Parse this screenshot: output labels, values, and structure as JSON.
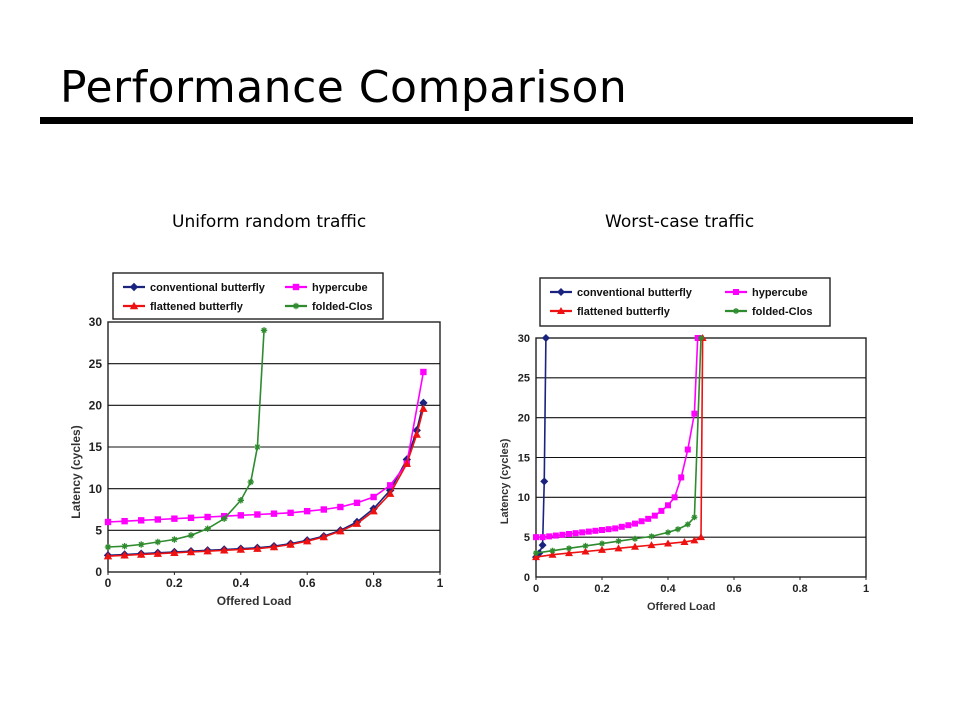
{
  "slide": {
    "title": "Performance Comparison",
    "left_caption": "Uniform random traffic",
    "right_caption": "Worst-case traffic"
  },
  "chart_data": [
    {
      "type": "line",
      "xlabel": "Offered Load",
      "ylabel": "Latency (cycles)",
      "xlim": [
        0,
        1
      ],
      "ylim": [
        0,
        30
      ],
      "xticks": [
        "0",
        "0.2",
        "0.4",
        "0.6",
        "0.8",
        "1"
      ],
      "yticks": [
        "0",
        "5",
        "10",
        "15",
        "20",
        "25",
        "30"
      ],
      "grid": "horizontal",
      "legend_position": "top",
      "series": [
        {
          "name": "conventional butterfly",
          "color": "#1a237e",
          "marker": "diamond",
          "x": [
            0,
            0.05,
            0.1,
            0.15,
            0.2,
            0.25,
            0.3,
            0.35,
            0.4,
            0.45,
            0.5,
            0.55,
            0.6,
            0.65,
            0.7,
            0.75,
            0.8,
            0.85,
            0.9,
            0.93,
            0.95
          ],
          "y": [
            2,
            2.1,
            2.2,
            2.3,
            2.4,
            2.5,
            2.6,
            2.7,
            2.8,
            2.9,
            3.1,
            3.4,
            3.8,
            4.3,
            5,
            6,
            7.6,
            9.8,
            13.5,
            17,
            20.3
          ]
        },
        {
          "name": "hypercube",
          "color": "#ff00ff",
          "marker": "square",
          "x": [
            0,
            0.05,
            0.1,
            0.15,
            0.2,
            0.25,
            0.3,
            0.35,
            0.4,
            0.45,
            0.5,
            0.55,
            0.6,
            0.65,
            0.7,
            0.75,
            0.8,
            0.85,
            0.9,
            0.95
          ],
          "y": [
            6,
            6.1,
            6.2,
            6.3,
            6.4,
            6.5,
            6.6,
            6.7,
            6.8,
            6.9,
            7.0,
            7.1,
            7.3,
            7.5,
            7.8,
            8.3,
            9.0,
            10.4,
            13.0,
            24.0
          ]
        },
        {
          "name": "flattened butterfly",
          "color": "#ee1111",
          "marker": "triangle",
          "x": [
            0,
            0.05,
            0.1,
            0.15,
            0.2,
            0.25,
            0.3,
            0.35,
            0.4,
            0.45,
            0.5,
            0.55,
            0.6,
            0.65,
            0.7,
            0.75,
            0.8,
            0.85,
            0.9,
            0.93,
            0.95
          ],
          "y": [
            1.9,
            2.0,
            2.1,
            2.2,
            2.3,
            2.4,
            2.5,
            2.6,
            2.7,
            2.8,
            3.0,
            3.3,
            3.7,
            4.2,
            4.9,
            5.8,
            7.3,
            9.4,
            13.0,
            16.5,
            19.6
          ]
        },
        {
          "name": "folded-Clos",
          "color": "#2e8b2e",
          "marker": "asterisk",
          "x": [
            0,
            0.05,
            0.1,
            0.15,
            0.2,
            0.25,
            0.3,
            0.35,
            0.4,
            0.43,
            0.45,
            0.47
          ],
          "y": [
            3.0,
            3.1,
            3.3,
            3.6,
            3.9,
            4.4,
            5.2,
            6.4,
            8.6,
            10.8,
            15.0,
            29.0
          ]
        }
      ]
    },
    {
      "type": "line",
      "xlabel": "Offered Load",
      "ylabel": "Latency (cycles)",
      "xlim": [
        0,
        1
      ],
      "ylim": [
        0,
        30
      ],
      "xticks": [
        "0",
        "0.2",
        "0.4",
        "0.6",
        "0.8",
        "1"
      ],
      "yticks": [
        "0",
        "5",
        "10",
        "15",
        "20",
        "25",
        "30"
      ],
      "grid": "horizontal",
      "legend_position": "top",
      "series": [
        {
          "name": "conventional butterfly",
          "color": "#1a237e",
          "marker": "diamond",
          "x": [
            0,
            0.01,
            0.02,
            0.025,
            0.03
          ],
          "y": [
            2.5,
            3.0,
            4.0,
            12.0,
            30.0
          ]
        },
        {
          "name": "hypercube",
          "color": "#ff00ff",
          "marker": "square",
          "x": [
            0,
            0.02,
            0.04,
            0.06,
            0.08,
            0.1,
            0.12,
            0.14,
            0.16,
            0.18,
            0.2,
            0.22,
            0.24,
            0.26,
            0.28,
            0.3,
            0.32,
            0.34,
            0.36,
            0.38,
            0.4,
            0.42,
            0.44,
            0.46,
            0.48,
            0.49
          ],
          "y": [
            5.0,
            5.0,
            5.1,
            5.2,
            5.3,
            5.4,
            5.5,
            5.6,
            5.7,
            5.8,
            5.9,
            6.0,
            6.1,
            6.3,
            6.5,
            6.7,
            7.0,
            7.3,
            7.7,
            8.3,
            9.0,
            10.0,
            12.5,
            16.0,
            20.5,
            30.0
          ]
        },
        {
          "name": "flattened butterfly",
          "color": "#ee1111",
          "marker": "triangle",
          "x": [
            0,
            0.05,
            0.1,
            0.15,
            0.2,
            0.25,
            0.3,
            0.35,
            0.4,
            0.45,
            0.48,
            0.5,
            0.505
          ],
          "y": [
            2.5,
            2.8,
            3.0,
            3.2,
            3.4,
            3.6,
            3.8,
            4.0,
            4.2,
            4.4,
            4.6,
            5.0,
            30.0
          ]
        },
        {
          "name": "folded-Clos",
          "color": "#2e8b2e",
          "marker": "asterisk",
          "x": [
            0,
            0.05,
            0.1,
            0.15,
            0.2,
            0.25,
            0.3,
            0.35,
            0.4,
            0.43,
            0.46,
            0.48,
            0.5
          ],
          "y": [
            3.0,
            3.3,
            3.6,
            3.9,
            4.2,
            4.5,
            4.8,
            5.1,
            5.6,
            6.0,
            6.6,
            7.5,
            30.0
          ]
        }
      ]
    }
  ]
}
